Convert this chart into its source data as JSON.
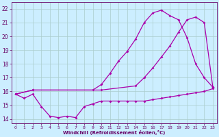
{
  "bg_color": "#cceeff",
  "grid_color": "#aacccc",
  "line_color": "#aa00aa",
  "xlabel": "Windchill (Refroidissement éolien,°C)",
  "xlabel_color": "#660066",
  "tick_color": "#660066",
  "ylabel_ticks": [
    14,
    15,
    16,
    17,
    18,
    19,
    20,
    21,
    22
  ],
  "xlabel_ticks": [
    0,
    1,
    2,
    3,
    4,
    5,
    6,
    7,
    8,
    9,
    10,
    11,
    12,
    13,
    14,
    15,
    16,
    17,
    18,
    19,
    20,
    21,
    22,
    23
  ],
  "xlim": [
    -0.5,
    23.5
  ],
  "ylim": [
    13.7,
    22.5
  ],
  "line1_x": [
    0,
    1,
    2,
    3,
    4,
    5,
    6,
    7,
    8,
    9,
    10,
    11,
    12,
    13,
    14,
    15,
    16,
    17,
    18,
    19,
    20,
    21,
    22,
    23
  ],
  "line1_y": [
    15.8,
    15.5,
    15.8,
    14.9,
    14.2,
    14.1,
    14.2,
    14.1,
    14.9,
    15.1,
    15.3,
    15.3,
    15.3,
    15.3,
    15.3,
    15.3,
    15.4,
    15.5,
    15.6,
    15.7,
    15.8,
    15.9,
    16.0,
    16.2
  ],
  "line2_x": [
    0,
    2,
    10,
    14,
    15,
    16,
    17,
    18,
    19,
    20,
    21,
    22,
    23
  ],
  "line2_y": [
    15.8,
    16.1,
    16.1,
    16.4,
    17.0,
    17.7,
    18.5,
    19.3,
    20.3,
    21.2,
    21.4,
    21.0,
    16.3
  ],
  "line3_x": [
    0,
    2,
    9,
    10,
    11,
    12,
    13,
    14,
    15,
    16,
    17,
    18,
    19,
    20,
    21,
    22,
    23
  ],
  "line3_y": [
    15.8,
    16.1,
    16.1,
    16.5,
    17.3,
    18.2,
    18.9,
    19.8,
    21.0,
    21.7,
    21.9,
    21.5,
    21.2,
    19.9,
    18.0,
    17.0,
    16.3
  ]
}
